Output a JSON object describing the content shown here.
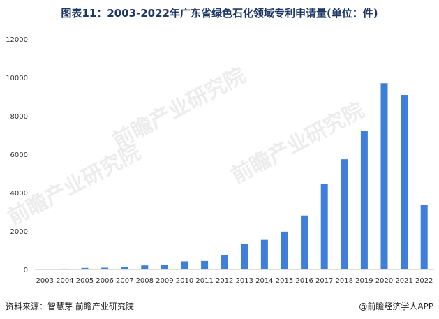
{
  "title": "图表11：2003-2022年广东省绿色石化领域专利申请量(单位：件)",
  "source": "资料来源：智慧芽 前瞻产业研究院",
  "brand": "@前瞻经济学人APP",
  "watermark": "前瞻产业研究院",
  "colors": {
    "bar": "#3f7fd9",
    "title": "#1f3864"
  },
  "chart_data": {
    "type": "bar",
    "title": "图表11：2003-2022年广东省绿色石化领域专利申请量(单位：件)",
    "xlabel": "",
    "ylabel": "",
    "categories": [
      "2003",
      "2004",
      "2005",
      "2006",
      "2007",
      "2008",
      "2009",
      "2010",
      "2011",
      "2012",
      "2013",
      "2014",
      "2015",
      "2016",
      "2017",
      "2018",
      "2019",
      "2020",
      "2021",
      "2022"
    ],
    "values": [
      30,
      40,
      80,
      90,
      120,
      210,
      250,
      420,
      440,
      760,
      1320,
      1540,
      1970,
      2810,
      4450,
      5740,
      7200,
      9700,
      9090,
      3380
    ],
    "ylim": [
      0,
      12000
    ],
    "yticks": [
      0,
      2000,
      4000,
      6000,
      8000,
      10000,
      12000
    ],
    "grid": false,
    "legend": "none"
  }
}
